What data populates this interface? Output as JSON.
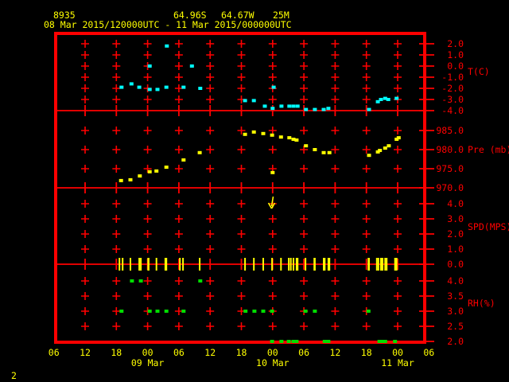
{
  "colors": {
    "background": "#000000",
    "frame": "#ff0000",
    "grid": "#ff0000",
    "axis_text": "#ff0000",
    "header_text": "#ffff00",
    "time_text": "#ffff00",
    "temperature": "#00ffff",
    "pressure": "#ffff00",
    "wind": "#ffff00",
    "humidity": "#00dd00"
  },
  "header": {
    "station_id": "8935",
    "lat": "64.96S",
    "lon": "64.67W",
    "elevation": "25M",
    "period": "08 Mar 2015/120000UTC - 11 Mar 2015/000000UTC"
  },
  "footer": {
    "page_number": "2"
  },
  "chart_data": {
    "type": "scatter",
    "subtype": "meteogram-4-panel",
    "grid": "on",
    "x_axis": {
      "unit": "hours UTC",
      "hours_span": 72,
      "hours_between_ticks": 6,
      "tick_labels": [
        "06",
        "12",
        "18",
        "00",
        "06",
        "12",
        "18",
        "00",
        "06",
        "12",
        "18",
        "00",
        "06"
      ],
      "date_labels": [
        {
          "label": "09 Mar",
          "t": 18
        },
        {
          "label": "10 Mar",
          "t": 42
        },
        {
          "label": "11 Mar",
          "t": 66
        }
      ]
    },
    "panels": [
      {
        "id": "temp",
        "series_name": "temperature",
        "axis_label": "T(C)",
        "range": [
          2.0,
          -4.0
        ],
        "ticks": [
          [
            "2.0",
            2
          ],
          [
            "1.0",
            1
          ],
          [
            "0.0",
            0
          ],
          [
            "-1.0",
            -1
          ],
          [
            "-2.0",
            -2
          ],
          [
            "-3.0",
            -3
          ],
          [
            "-4.0",
            -4
          ]
        ],
        "points": [
          [
            13.0,
            -1.9
          ],
          [
            14.9,
            -1.6
          ],
          [
            16.4,
            -1.9
          ],
          [
            18.4,
            0.0
          ],
          [
            18.4,
            -2.1
          ],
          [
            19.9,
            -2.1
          ],
          [
            21.6,
            -1.9
          ],
          [
            21.7,
            1.8
          ],
          [
            24.9,
            -1.9
          ],
          [
            26.5,
            0.0
          ],
          [
            28.1,
            -2.0
          ],
          [
            36.7,
            -3.1
          ],
          [
            38.4,
            -3.1
          ],
          [
            40.5,
            -3.6
          ],
          [
            42.0,
            -3.8
          ],
          [
            42.2,
            -1.9
          ],
          [
            43.7,
            -3.6
          ],
          [
            45.2,
            -3.6
          ],
          [
            46.0,
            -3.6
          ],
          [
            46.8,
            -3.6
          ],
          [
            48.4,
            -3.9
          ],
          [
            50.1,
            -3.9
          ],
          [
            51.8,
            -3.9
          ],
          [
            52.7,
            -3.8
          ],
          [
            60.5,
            -3.9
          ],
          [
            62.2,
            -3.2
          ],
          [
            62.8,
            -3.0
          ],
          [
            63.6,
            -2.9
          ],
          [
            64.2,
            -3.0
          ],
          [
            65.8,
            -2.9
          ]
        ]
      },
      {
        "id": "pres",
        "series_name": "pressure",
        "axis_label": "Pre (mb)",
        "range": [
          985.0,
          970.0
        ],
        "ticks": [
          [
            "985.0",
            985
          ],
          [
            "980.0",
            980
          ],
          [
            "975.0",
            975
          ],
          [
            "970.0",
            970
          ]
        ],
        "points": [
          [
            12.9,
            971.9
          ],
          [
            14.7,
            972.1
          ],
          [
            16.5,
            973.1
          ],
          [
            18.4,
            974.2
          ],
          [
            19.7,
            974.4
          ],
          [
            21.6,
            975.4
          ],
          [
            24.9,
            977.3
          ],
          [
            28.0,
            979.2
          ],
          [
            36.7,
            984.0
          ],
          [
            38.4,
            984.6
          ],
          [
            40.2,
            984.2
          ],
          [
            41.9,
            983.8
          ],
          [
            42.0,
            974.0
          ],
          [
            43.6,
            983.3
          ],
          [
            45.2,
            983.1
          ],
          [
            46.0,
            982.7
          ],
          [
            46.6,
            982.5
          ],
          [
            48.4,
            981.0
          ],
          [
            50.1,
            980.0
          ],
          [
            51.8,
            979.2
          ],
          [
            52.9,
            979.2
          ],
          [
            60.5,
            978.5
          ],
          [
            62.2,
            979.4
          ],
          [
            62.6,
            979.8
          ],
          [
            63.6,
            980.4
          ],
          [
            64.3,
            981.0
          ],
          [
            65.8,
            982.7
          ],
          [
            66.2,
            983.1
          ]
        ]
      },
      {
        "id": "spd",
        "series_name": "wind-speed",
        "axis_label": "SPD(MPS)",
        "range": [
          4.0,
          0.0
        ],
        "ticks": [
          [
            "4.0",
            4
          ],
          [
            "3.0",
            3
          ],
          [
            "2.0",
            2
          ],
          [
            "1.0",
            1
          ],
          [
            "0.0",
            0
          ]
        ],
        "barb_times": [
          12.6,
          13.2,
          14.7,
          16.4,
          16.7,
          18.1,
          18.2,
          19.7,
          21.4,
          21.6,
          24.2,
          24.8,
          28.0,
          36.7,
          38.4,
          40.2,
          41.9,
          43.6,
          45.1,
          45.5,
          46.0,
          46.6,
          46.8,
          48.3,
          50.0,
          50.1,
          51.8,
          52.0,
          52.7,
          52.9,
          60.4,
          60.5,
          62.0,
          62.3,
          62.8,
          63.1,
          63.6,
          63.9,
          65.5,
          65.7,
          65.8
        ],
        "arrow": {
          "t": 41.8,
          "v_top": 4.5,
          "v_tip": 3.6
        }
      },
      {
        "id": "rh",
        "series_name": "relative-humidity",
        "axis_label": "RH(%)",
        "range": [
          4.0,
          2.0
        ],
        "ticks": [
          [
            "4.0",
            4
          ],
          [
            "3.5",
            3.5
          ],
          [
            "3.0",
            3
          ],
          [
            "2.5",
            2.5
          ],
          [
            "2.0",
            2
          ]
        ],
        "points": [
          [
            15.0,
            4.0
          ],
          [
            16.7,
            4.0
          ],
          [
            28.1,
            4.0
          ],
          [
            13.0,
            3.0
          ],
          [
            18.4,
            3.0
          ],
          [
            19.9,
            3.0
          ],
          [
            21.6,
            3.0
          ],
          [
            24.9,
            3.0
          ],
          [
            36.8,
            3.0
          ],
          [
            38.5,
            3.0
          ],
          [
            40.2,
            3.0
          ],
          [
            41.9,
            3.0
          ],
          [
            48.3,
            3.0
          ],
          [
            50.1,
            3.0
          ],
          [
            60.4,
            3.0
          ],
          [
            41.9,
            2.0
          ],
          [
            43.7,
            2.0
          ],
          [
            45.1,
            2.0
          ],
          [
            46.0,
            2.0
          ],
          [
            46.6,
            2.0
          ],
          [
            52.0,
            2.0
          ],
          [
            52.7,
            2.0
          ],
          [
            62.5,
            2.0
          ],
          [
            63.1,
            2.0
          ],
          [
            63.6,
            2.0
          ],
          [
            65.5,
            2.0
          ]
        ]
      }
    ]
  }
}
